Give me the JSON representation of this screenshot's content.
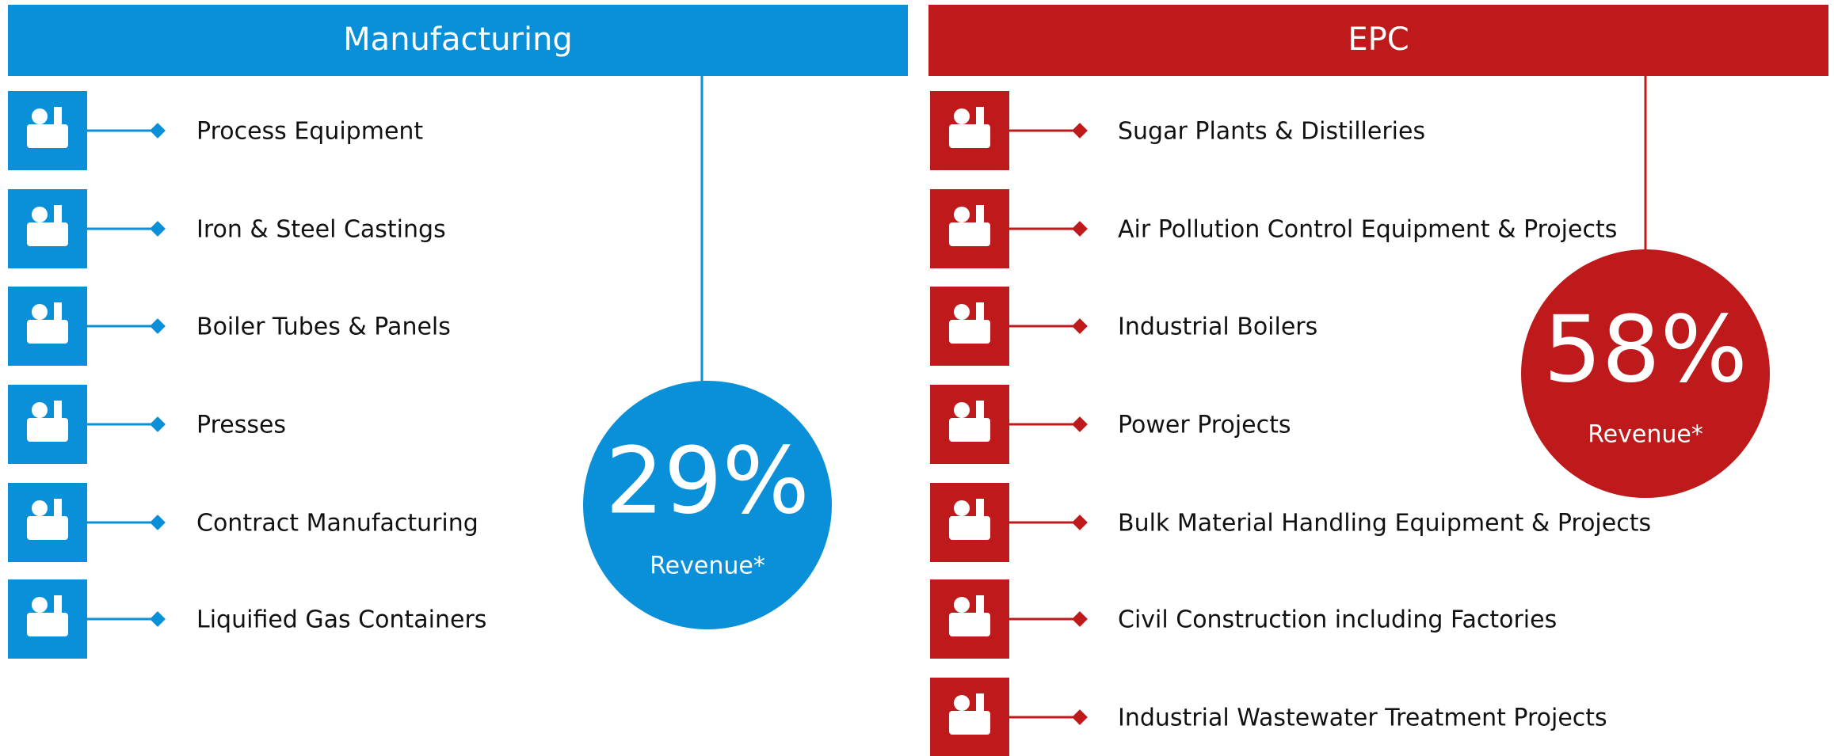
{
  "panels": [
    {
      "title": "Manufacturing",
      "color": "#0a8fd9",
      "percent": "29%",
      "note": "Revenue*",
      "items": [
        "Process Equipment",
        "Iron & Steel Castings",
        "Boiler Tubes & Panels",
        "Presses",
        "Contract Manufacturing",
        "Liquified Gas Containers"
      ]
    },
    {
      "title": "EPC",
      "color": "#bf1a1b",
      "percent": "58%",
      "note": "Revenue*",
      "items": [
        "Sugar Plants & Distilleries",
        "Air Pollution Control Equipment & Projects",
        "Industrial Boilers",
        "Power Projects",
        "Bulk Material Handling Equipment & Projects",
        "Civil Construction including Factories",
        "Industrial Wastewater Treatment Projects"
      ]
    }
  ]
}
